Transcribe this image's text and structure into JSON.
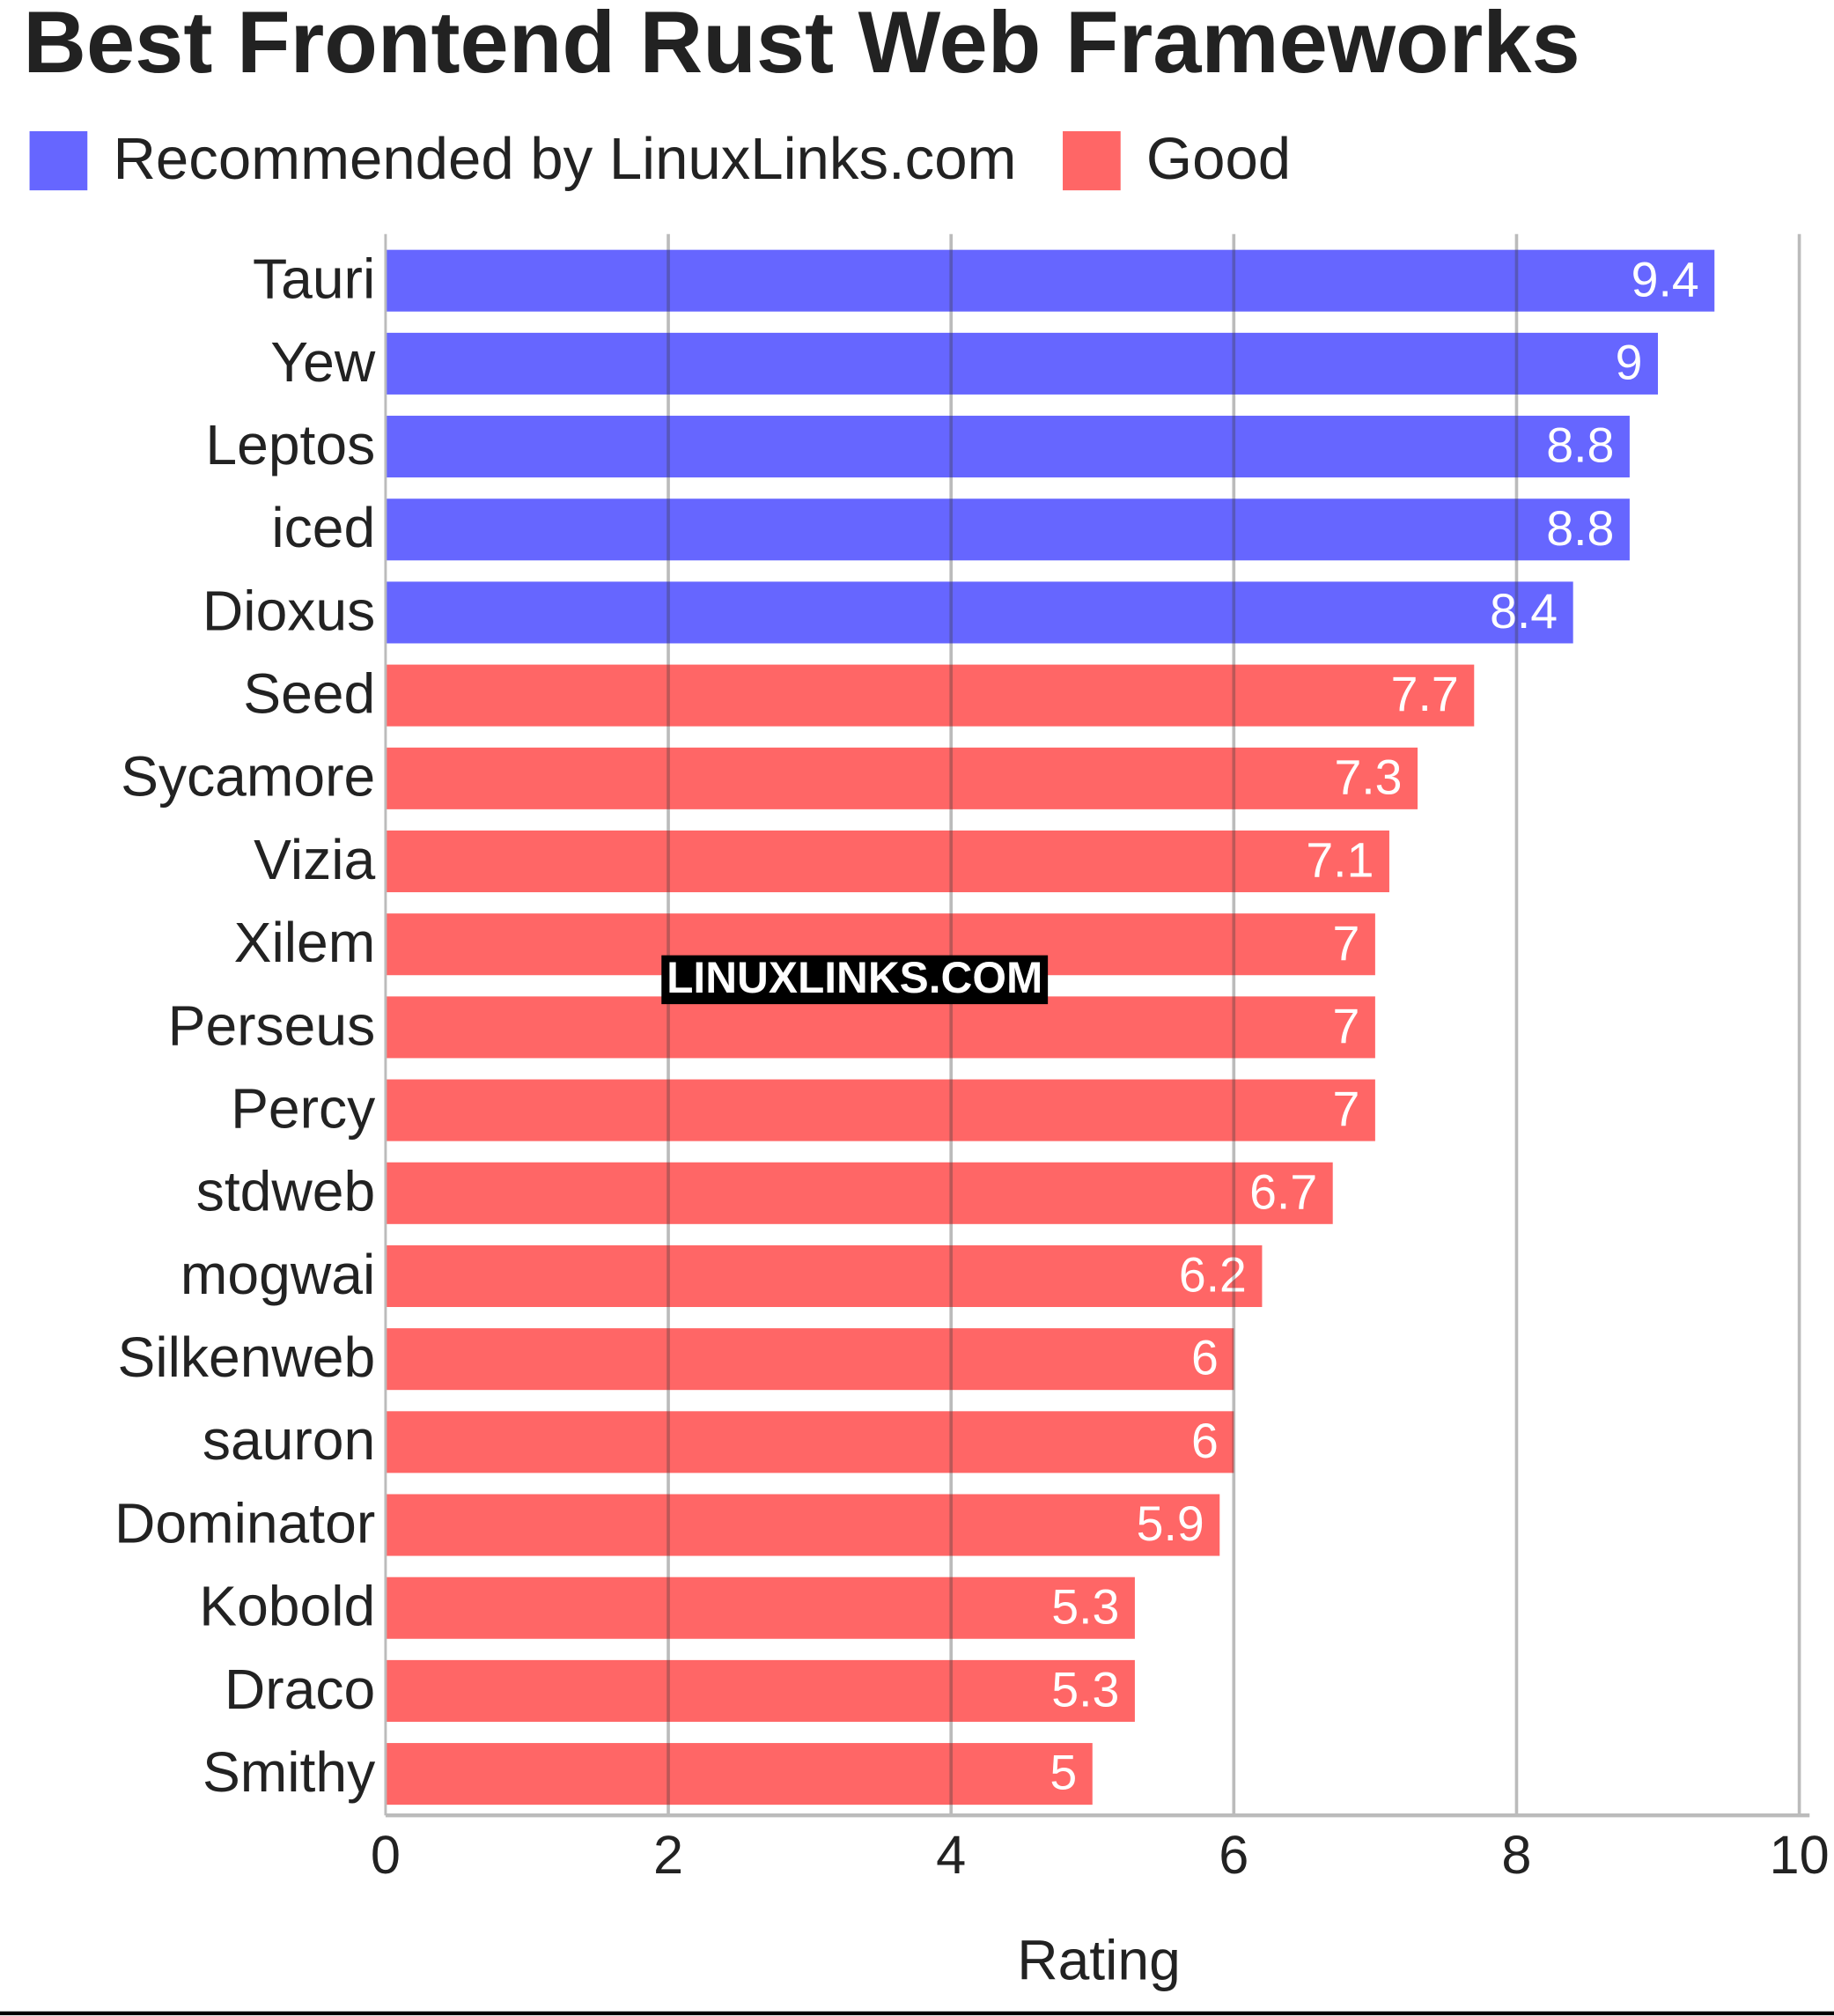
{
  "chart_data": {
    "type": "hbar",
    "title": "Best Frontend Rust Web Frameworks",
    "categories": [
      "Tauri",
      "Yew",
      "Leptos",
      "iced",
      "Dioxus",
      "Seed",
      "Sycamore",
      "Vizia",
      "Xilem",
      "Perseus",
      "Percy",
      "stdweb",
      "mogwai",
      "Silkenweb",
      "sauron",
      "Dominator",
      "Kobold",
      "Draco",
      "Smithy"
    ],
    "series": [
      {
        "name": "Recommended by LinuxLinks.com",
        "color": "#6666ff",
        "values": [
          9.4,
          9,
          8.8,
          8.8,
          8.4,
          null,
          null,
          null,
          null,
          null,
          null,
          null,
          null,
          null,
          null,
          null,
          null,
          null,
          null
        ]
      },
      {
        "name": "Good",
        "color": "#ff6666",
        "values": [
          null,
          null,
          null,
          null,
          null,
          7.7,
          7.3,
          7.1,
          7,
          7,
          7,
          6.7,
          6.2,
          6,
          6,
          5.9,
          5.3,
          5.3,
          5
        ]
      }
    ],
    "xlabel": "Rating",
    "xlim": [
      0,
      10
    ],
    "xticks": [
      0,
      2,
      4,
      6,
      8,
      10
    ],
    "grid": true,
    "watermark": "LINUXLINKS.COM"
  }
}
